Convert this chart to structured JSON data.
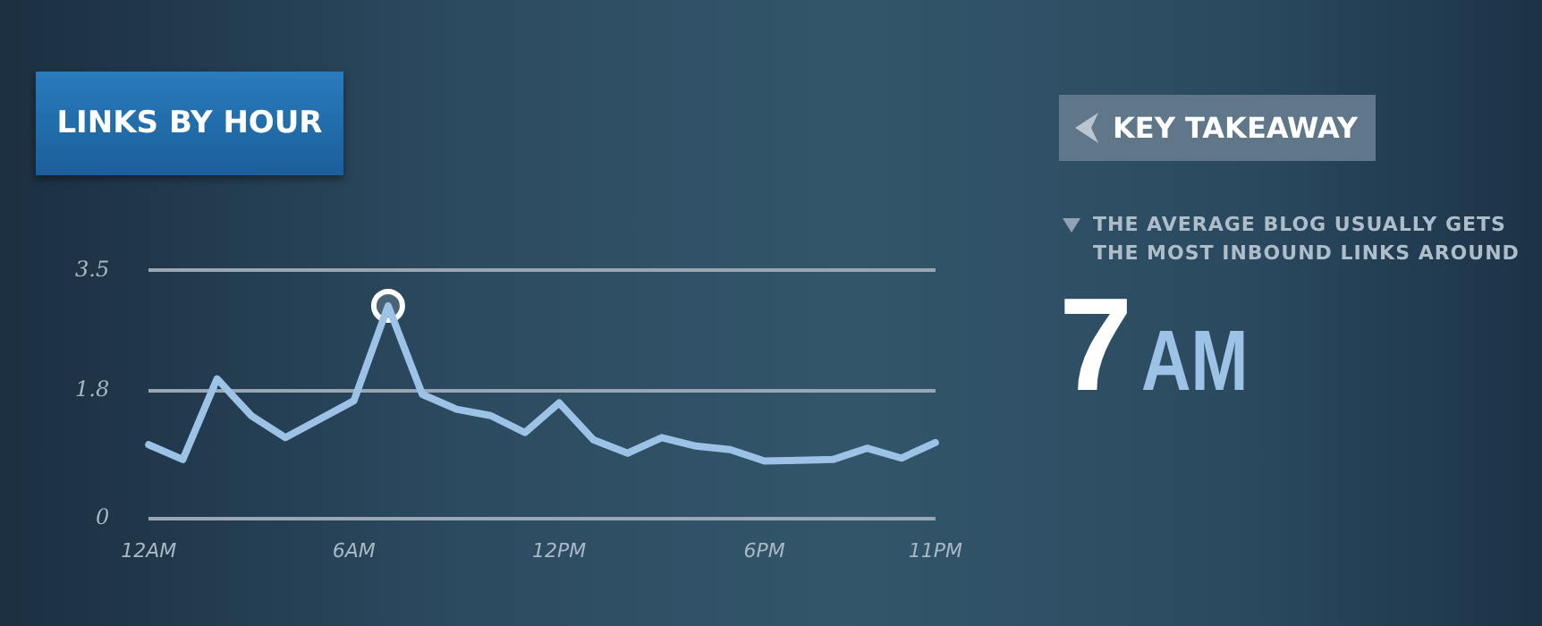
{
  "chart_data": {
    "type": "line",
    "title": "LINKS BY HOUR",
    "categories": [
      "12AM",
      null,
      null,
      null,
      null,
      null,
      "6AM",
      null,
      null,
      null,
      null,
      null,
      "12PM",
      null,
      null,
      null,
      null,
      null,
      "6PM",
      null,
      null,
      null,
      null,
      "11PM"
    ],
    "series": [
      {
        "color": "#9cc3e6",
        "marker": "none",
        "values": [
          1.04,
          0.83,
          1.97,
          1.45,
          1.14,
          1.4,
          1.66,
          3.0,
          1.75,
          1.54,
          1.45,
          1.21,
          1.63,
          1.11,
          0.92,
          1.14,
          1.02,
          0.97,
          0.81,
          0.82,
          0.83,
          0.99,
          0.85,
          1.07
        ]
      },
      {
        "type": "scatter",
        "color": "#ffffff",
        "marker": "circle",
        "values": [
          null,
          null,
          null,
          null,
          null,
          null,
          null,
          3.0,
          null,
          null,
          null,
          null,
          null,
          null,
          null,
          null,
          null,
          null,
          null,
          null,
          null,
          null,
          null,
          null
        ]
      }
    ],
    "ylim": [
      0,
      3.5
    ],
    "yticks": [
      0,
      1.8,
      3.5
    ],
    "grid": "y",
    "legend": false,
    "line_style": "solid",
    "annotations": [
      "KEY TAKEAWAY",
      "THE AVERAGE BLOG USUALLY GETS THE MOST INBOUND LINKS AROUND",
      "7",
      "AM"
    ]
  }
}
